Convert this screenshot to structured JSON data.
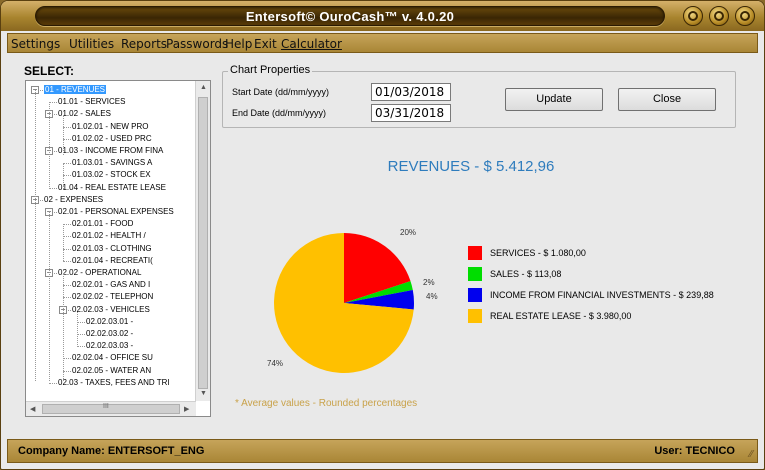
{
  "window": {
    "title": "Entersoft© OuroCash™ v. 4.0.20",
    "controls": [
      "minimize-icon",
      "maximize-icon",
      "close-icon"
    ]
  },
  "menu": {
    "items": [
      "Settings",
      "Utilities",
      "Reports",
      "Passwords",
      "Help",
      "Exit",
      "Calculator"
    ]
  },
  "sidebar": {
    "label": "SELECT:",
    "tree": [
      {
        "text": "01 - REVENUES",
        "selected": true,
        "expander": "−"
      },
      {
        "text": "01.01 - SERVICES"
      },
      {
        "text": "01.02 - SALES",
        "expander": "−"
      },
      {
        "text": "01.02.01 - NEW PRO"
      },
      {
        "text": "01.02.02 - USED PRC"
      },
      {
        "text": "01.03 - INCOME FROM FINA",
        "expander": "−"
      },
      {
        "text": "01.03.01 - SAVINGS A"
      },
      {
        "text": "01.03.02 - STOCK EX"
      },
      {
        "text": "01.04 - REAL ESTATE LEASE"
      },
      {
        "text": "02 - EXPENSES",
        "expander": "−"
      },
      {
        "text": "02.01 - PERSONAL EXPENSES",
        "expander": "−"
      },
      {
        "text": "02.01.01 - FOOD"
      },
      {
        "text": "02.01.02 - HEALTH /"
      },
      {
        "text": "02.01.03 - CLOTHING"
      },
      {
        "text": "02.01.04 - RECREATI("
      },
      {
        "text": "02.02 - OPERATIONAL",
        "expander": "−"
      },
      {
        "text": "02.02.01 - GAS AND I"
      },
      {
        "text": "02.02.02 - TELEPHON"
      },
      {
        "text": "02.02.03 - VEHICLES",
        "expander": "−"
      },
      {
        "text": "02.02.03.01 -"
      },
      {
        "text": "02.02.03.02 -"
      },
      {
        "text": "02.02.03.03 -"
      },
      {
        "text": "02.02.04 - OFFICE SU"
      },
      {
        "text": "02.02.05 - WATER AN"
      },
      {
        "text": "02.03 - TAXES, FEES AND TRI"
      }
    ],
    "hscroll_thumb": "III"
  },
  "chart_properties": {
    "legend": "Chart Properties",
    "start_label": "Start Date (dd/mm/yyyy)",
    "start_value": "01/03/2018",
    "end_label": "End Date (dd/mm/yyyy)",
    "end_value": "03/31/2018",
    "update_label": "Update",
    "close_label": "Close"
  },
  "chart_data": {
    "type": "pie",
    "title": "REVENUES - $ 5.412,96",
    "slices": [
      {
        "label": "SERVICES - $ 1.080,00",
        "value": 1080.0,
        "percent_label": "20%",
        "color": "#ff0000"
      },
      {
        "label": "SALES - $ 113,08",
        "value": 113.08,
        "percent_label": "2%",
        "color": "#00dd00"
      },
      {
        "label": "INCOME FROM FINANCIAL INVESTMENTS - $ 239,88",
        "value": 239.88,
        "percent_label": "4%",
        "color": "#0000ee"
      },
      {
        "label": "REAL ESTATE LEASE - $ 3.980,00",
        "value": 3980.0,
        "percent_label": "74%",
        "color": "#ffc000"
      }
    ],
    "footnote": "* Average values - Rounded percentages"
  },
  "status": {
    "company": "Company Name: ENTERSOFT_ENG",
    "user": "User: TECNICO"
  }
}
